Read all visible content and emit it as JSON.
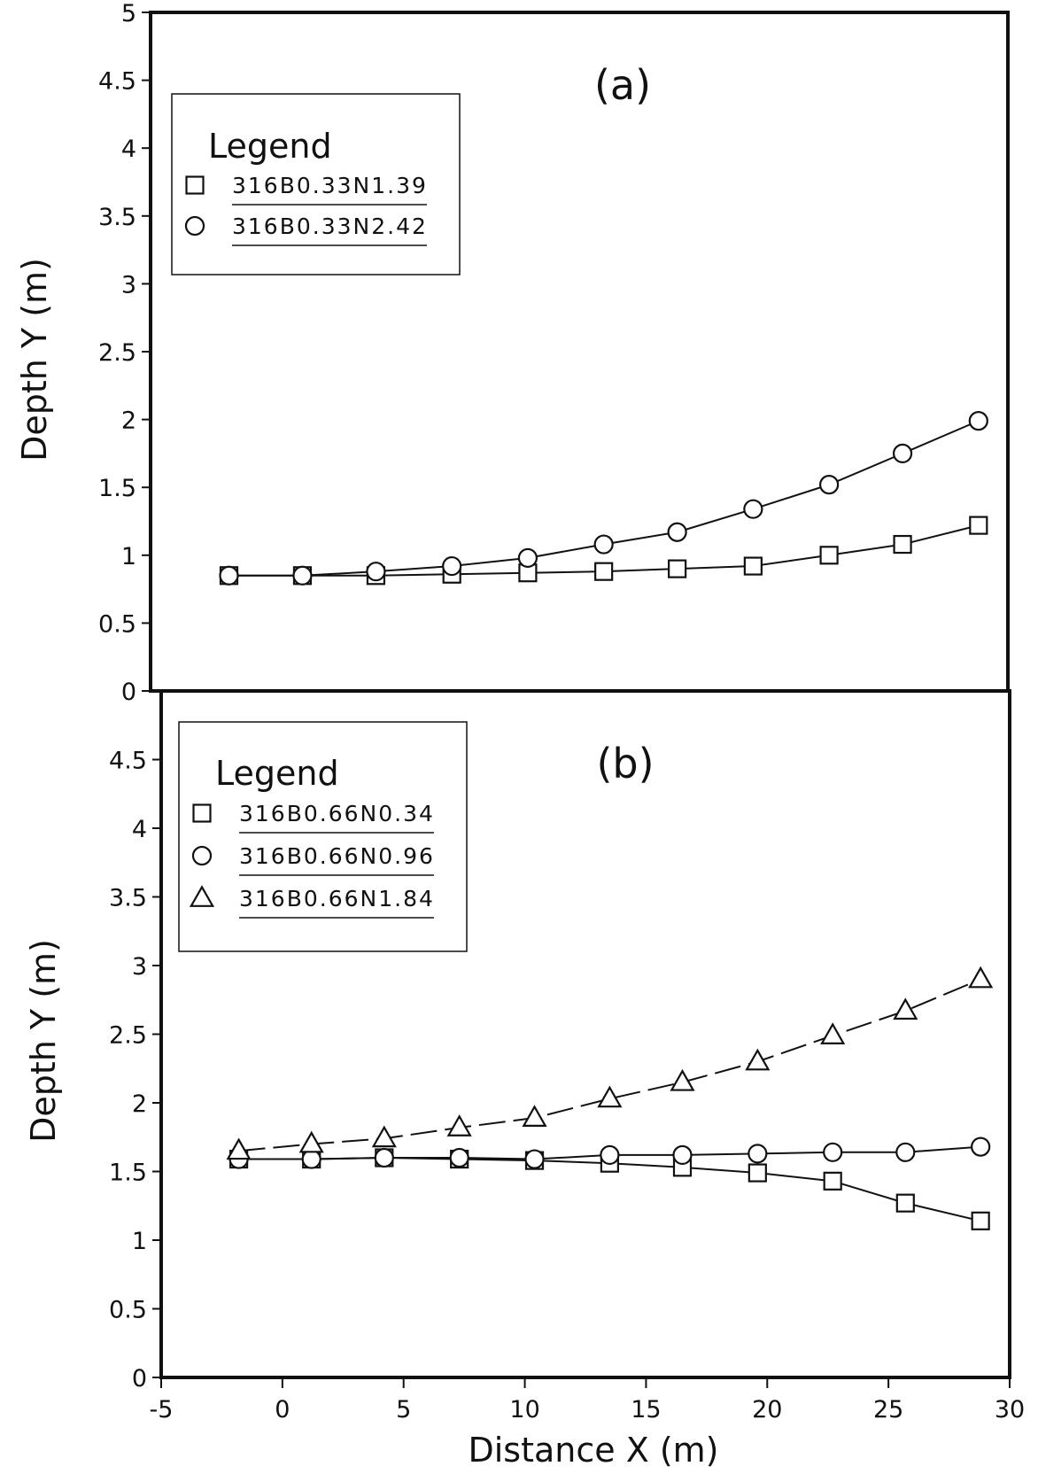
{
  "chart_data": [
    {
      "type": "line",
      "panel_label": "(a)",
      "xlabel": "",
      "ylabel": "Depth Y (m)",
      "xlim": [
        -5,
        30
      ],
      "ylim": [
        0,
        5
      ],
      "yticks": [
        0,
        0.5,
        1,
        1.5,
        2,
        2.5,
        3,
        3.5,
        4,
        4.5,
        5
      ],
      "ytick_labels": [
        "0",
        "0.5",
        "1",
        "1.5",
        "2",
        "2.5",
        "3",
        "3.5",
        "4",
        "4.5",
        "5"
      ],
      "legend": {
        "title": "Legend",
        "placement": "top-left"
      },
      "series": [
        {
          "name": "316B0.33N1.39",
          "marker": "square",
          "line": "solid",
          "x": [
            -1.8,
            1.2,
            4.2,
            7.3,
            10.4,
            13.5,
            16.5,
            19.6,
            22.7,
            25.7,
            28.8
          ],
          "y": [
            0.85,
            0.85,
            0.85,
            0.86,
            0.87,
            0.88,
            0.9,
            0.92,
            1.0,
            1.08,
            1.22
          ]
        },
        {
          "name": "316B0.33N2.42",
          "marker": "circle",
          "line": "solid",
          "x": [
            -1.8,
            1.2,
            4.2,
            7.3,
            10.4,
            13.5,
            16.5,
            19.6,
            22.7,
            25.7,
            28.8
          ],
          "y": [
            0.85,
            0.85,
            0.88,
            0.92,
            0.98,
            1.08,
            1.17,
            1.34,
            1.52,
            1.75,
            1.99
          ]
        }
      ]
    },
    {
      "type": "line",
      "panel_label": "(b)",
      "xlabel": "Distance X (m)",
      "ylabel": "Depth Y (m)",
      "xlim": [
        -5,
        30
      ],
      "ylim": [
        0,
        5
      ],
      "xticks": [
        -5,
        0,
        5,
        10,
        15,
        20,
        25,
        30
      ],
      "xtick_labels": [
        "-5",
        "0",
        "5",
        "10",
        "15",
        "20",
        "25",
        "30"
      ],
      "yticks": [
        0,
        0.5,
        1,
        1.5,
        2,
        2.5,
        3,
        3.5,
        4,
        4.5
      ],
      "ytick_labels": [
        "0",
        "0.5",
        "1",
        "1.5",
        "2",
        "2.5",
        "3",
        "3.5",
        "4",
        "4.5"
      ],
      "legend": {
        "title": "Legend",
        "placement": "top-left"
      },
      "series": [
        {
          "name": "316B0.66N0.34",
          "marker": "square",
          "line": "solid",
          "x": [
            -1.8,
            1.2,
            4.2,
            7.3,
            10.4,
            13.5,
            16.5,
            19.6,
            22.7,
            25.7,
            28.8
          ],
          "y": [
            1.59,
            1.59,
            1.6,
            1.59,
            1.58,
            1.56,
            1.53,
            1.49,
            1.43,
            1.27,
            1.14
          ]
        },
        {
          "name": "316B0.66N0.96",
          "marker": "circle",
          "line": "solid",
          "x": [
            -1.8,
            1.2,
            4.2,
            7.3,
            10.4,
            13.5,
            16.5,
            19.6,
            22.7,
            25.7,
            28.8
          ],
          "y": [
            1.59,
            1.59,
            1.6,
            1.6,
            1.59,
            1.62,
            1.62,
            1.63,
            1.64,
            1.64,
            1.68
          ]
        },
        {
          "name": "316B0.66N1.84",
          "marker": "triangle",
          "line": "dashed",
          "x": [
            -1.8,
            1.2,
            4.2,
            7.3,
            10.4,
            13.5,
            16.5,
            19.6,
            22.7,
            25.7,
            28.8
          ],
          "y": [
            1.65,
            1.7,
            1.74,
            1.82,
            1.89,
            2.03,
            2.15,
            2.3,
            2.49,
            2.67,
            2.9
          ]
        }
      ]
    }
  ]
}
